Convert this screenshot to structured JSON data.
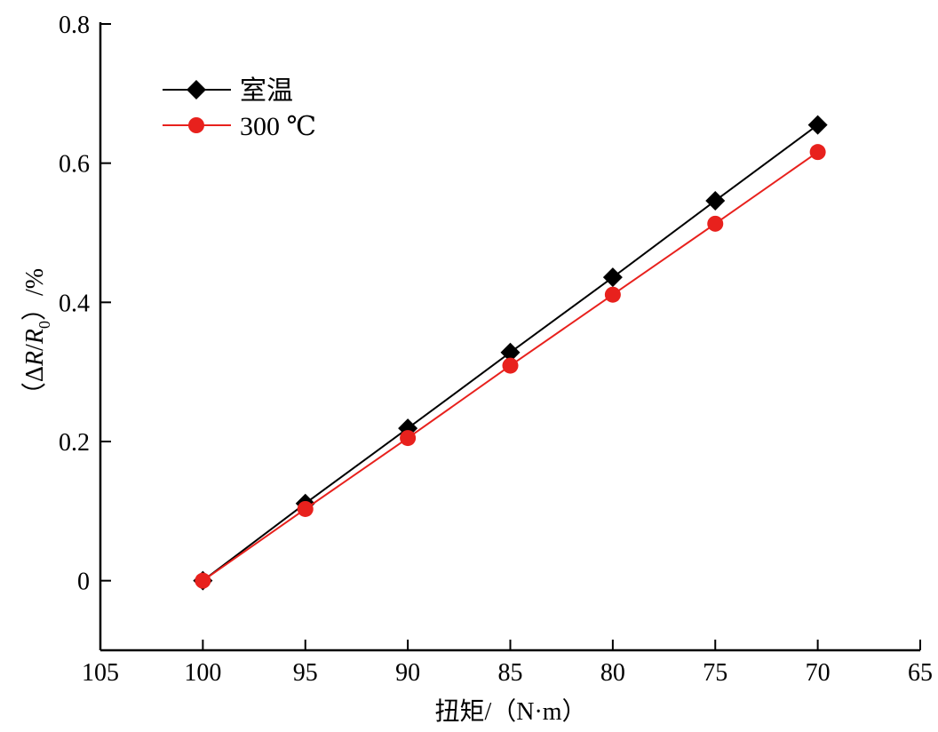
{
  "chart_data": {
    "type": "line",
    "title": "",
    "xlabel": "扭矩/（N·m）",
    "ylabel_parts": {
      "open": "（",
      "delta": "Δ",
      "r": "R",
      "slash": "/",
      "r0": "R",
      "sub": "0",
      "close": "）",
      "unit": "/%"
    },
    "ylabel": "（ΔR/R0）/%",
    "xlim": [
      105,
      65
    ],
    "ylim": [
      -0.1,
      0.8
    ],
    "x_ticks": [
      105,
      100,
      95,
      90,
      85,
      80,
      75,
      70,
      65
    ],
    "x_tick_labels": [
      "105",
      "100",
      "95",
      "90",
      "85",
      "80",
      "75",
      "70",
      "65"
    ],
    "y_ticks": [
      0,
      0.2,
      0.4,
      0.6,
      0.8
    ],
    "y_tick_labels": [
      "0",
      "0.2",
      "0.4",
      "0.6",
      "0.8"
    ],
    "grid": false,
    "legend_position": "top-left",
    "x": [
      100,
      95,
      90,
      85,
      80,
      75,
      70
    ],
    "series": [
      {
        "name": "室温",
        "marker": "diamond",
        "color": "#000000",
        "values": [
          0,
          0.111,
          0.219,
          0.328,
          0.436,
          0.546,
          0.655
        ]
      },
      {
        "name": "300 ℃",
        "marker": "circle",
        "color": "#e8211d",
        "values": [
          0,
          0.103,
          0.205,
          0.309,
          0.411,
          0.513,
          0.616
        ]
      }
    ]
  }
}
